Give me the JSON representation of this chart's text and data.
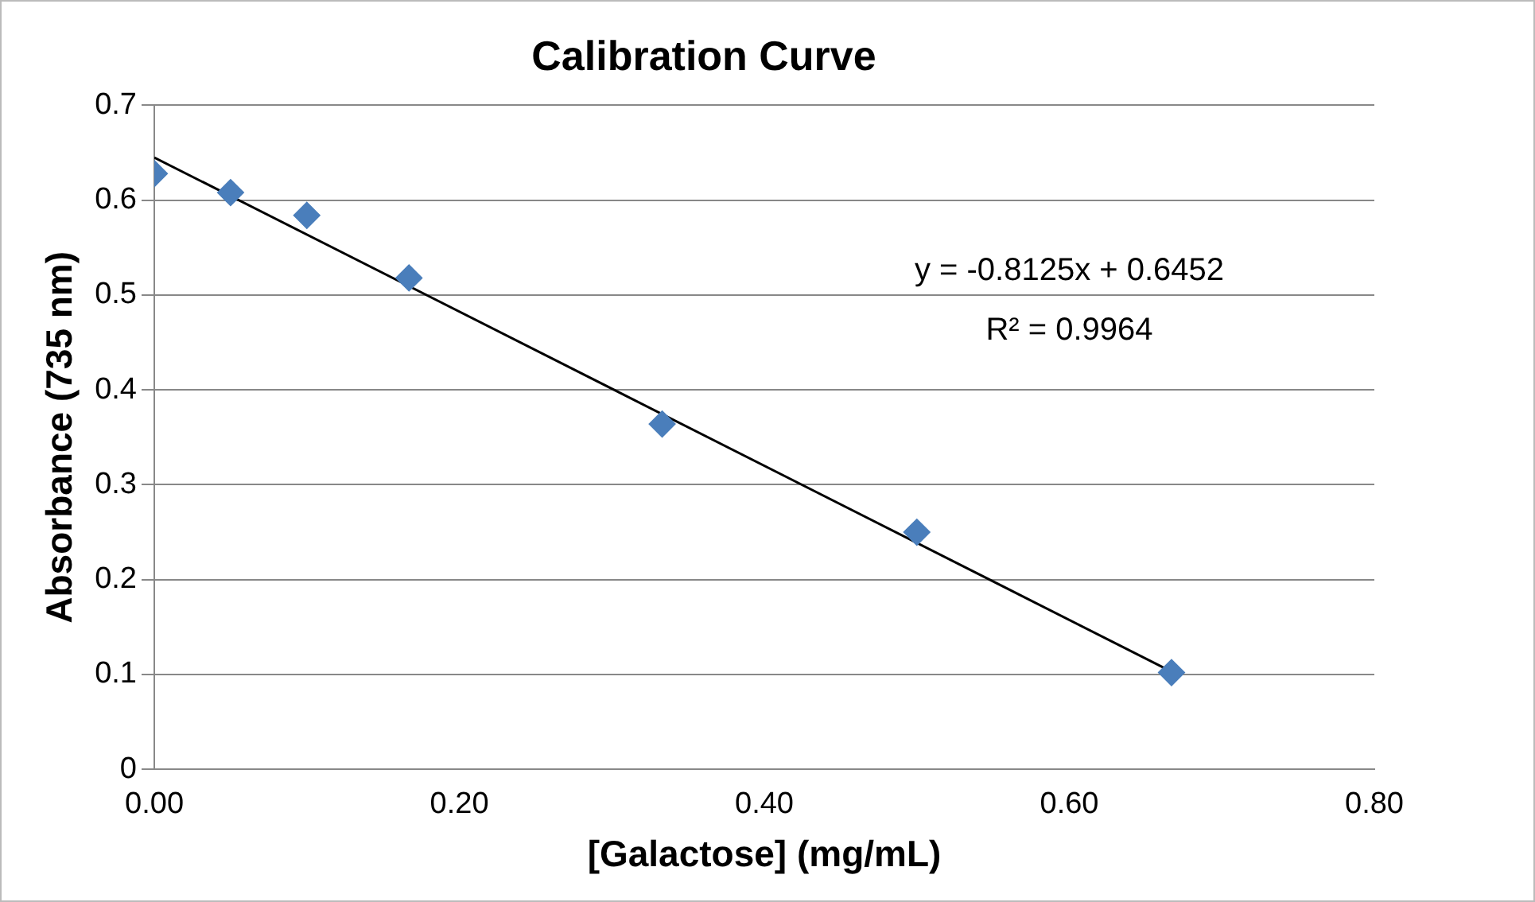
{
  "chart_data": {
    "type": "scatter",
    "title": "Calibration Curve",
    "xlabel": "[Galactose] (mg/mL)",
    "ylabel": "Absorbance (735 nm)",
    "xlim": [
      0,
      0.8
    ],
    "xticks": [
      {
        "value": 0,
        "label": "0.00"
      },
      {
        "value": 0.2,
        "label": "0.20"
      },
      {
        "value": 0.4,
        "label": "0.40"
      },
      {
        "value": 0.6,
        "label": "0.60"
      },
      {
        "value": 0.8,
        "label": "0.80"
      }
    ],
    "ylim": [
      0,
      0.7
    ],
    "yticks": [
      0,
      0.1,
      0.2,
      0.3,
      0.4,
      0.5,
      0.6,
      0.7
    ],
    "grid": "y",
    "legend": false,
    "marker": "diamond",
    "annotations": [
      "y = -0.8125x + 0.6452",
      "R² = 0.9964"
    ],
    "series": [
      {
        "color": "#4a7ebb",
        "x": [
          0,
          0.05,
          0.1,
          0.167,
          0.333,
          0.5,
          0.667
        ],
        "values": [
          0.628,
          0.608,
          0.584,
          0.518,
          0.364,
          0.25,
          0.102
        ]
      },
      {
        "type": "line",
        "color": "#000000",
        "marker": "none",
        "x": [
          0,
          0.667
        ],
        "values": [
          0.645,
          0.103
        ]
      }
    ]
  }
}
